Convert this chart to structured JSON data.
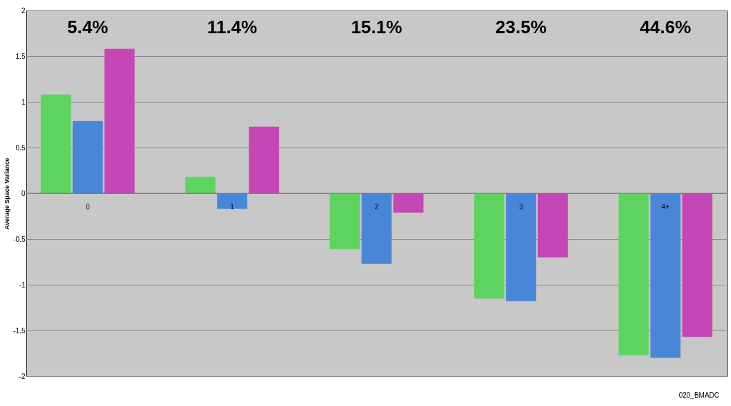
{
  "chart_data": {
    "type": "bar",
    "ylabel": "Average Space Variance",
    "categories": [
      "0",
      "1",
      "2",
      "3",
      "4+"
    ],
    "series": [
      {
        "color": "#5fd35f",
        "values": [
          1.08,
          0.18,
          -0.61,
          -1.15,
          -1.77
        ]
      },
      {
        "color": "#4a86d8",
        "values": [
          0.79,
          -0.17,
          -0.77,
          -1.18,
          -1.8
        ]
      },
      {
        "color": "#c546b5",
        "values": [
          1.58,
          0.73,
          -0.21,
          -0.7,
          -1.57
        ]
      }
    ],
    "ylim": [
      -2,
      2
    ],
    "yticks": [
      -2,
      -1.5,
      -1,
      -0.5,
      0,
      0.5,
      1,
      1.5,
      2
    ],
    "grid": "y",
    "legend": false,
    "annotations": [
      "5.4%",
      "11.4%",
      "15.1%",
      "23.5%",
      "44.6%",
      "020_BMADC"
    ]
  }
}
